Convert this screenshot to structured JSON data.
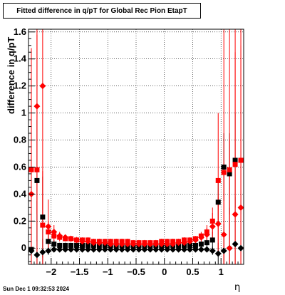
{
  "chart_data": {
    "type": "scatter",
    "title": "Fitted difference in q/pT for Global Rec Pion EtapT",
    "xlabel": "η",
    "ylabel": "difference in q/pT",
    "xlim": [
      -2.4,
      1.4
    ],
    "ylim": [
      -0.12,
      1.62
    ],
    "x_ticks": [
      -2,
      -1.5,
      -1,
      -0.5,
      0,
      0.5,
      1
    ],
    "x_tick_labels": [
      "−2",
      "−1.5",
      "−1",
      "−0.5",
      "0",
      "0.5",
      "1"
    ],
    "y_ticks": [
      0,
      0.2,
      0.4,
      0.6,
      0.8,
      1,
      1.2,
      1.4,
      1.6
    ],
    "y_tick_labels": [
      "0",
      "0.2",
      "0.4",
      "0.6",
      "0.8",
      "1",
      "1.2",
      "1.4",
      "1.6"
    ],
    "grid": true,
    "series": [
      {
        "color": "#000000",
        "marker": "square",
        "x": [
          -2.35,
          -2.25,
          -2.15,
          -2.05,
          -1.95,
          -1.85,
          -1.75,
          -1.65,
          -1.55,
          -1.45,
          -1.35,
          -1.25,
          -1.15,
          -1.05,
          -0.95,
          -0.85,
          -0.75,
          -0.65,
          -0.55,
          -0.45,
          -0.35,
          -0.25,
          -0.15,
          -0.05,
          0.05,
          0.15,
          0.25,
          0.35,
          0.45,
          0.55,
          0.65,
          0.75,
          0.85,
          0.95,
          1.05,
          1.15,
          1.25,
          1.35
        ],
        "y": [
          -0.01,
          0.5,
          0.23,
          0.05,
          0.03,
          0.02,
          0.02,
          0.02,
          0.02,
          0.02,
          0.02,
          0.02,
          0.02,
          0.02,
          0.02,
          0.02,
          0.02,
          0.02,
          0.02,
          0.02,
          0.02,
          0.02,
          0.02,
          0.02,
          0.02,
          0.02,
          0.02,
          0.02,
          0.02,
          0.02,
          0.03,
          0.04,
          0.06,
          0.34,
          0.6,
          0.55,
          0.65,
          0.65
        ],
        "err": [
          0.2,
          0.45,
          0.3,
          0.05,
          0.03,
          0.02,
          0.02,
          0.02,
          0.02,
          0.02,
          0.02,
          0.02,
          0.02,
          0.02,
          0.02,
          0.02,
          0.02,
          0.02,
          0.02,
          0.02,
          0.02,
          0.02,
          0.02,
          0.02,
          0.02,
          0.02,
          0.02,
          0.02,
          0.02,
          0.02,
          0.02,
          0.03,
          0.06,
          0.15,
          0.25,
          0.3,
          0.35,
          0.4
        ]
      },
      {
        "color": "#000000",
        "marker": "diamond",
        "x": [
          -2.35,
          -2.25,
          -2.15,
          -2.05,
          -1.95,
          -1.85,
          -1.75,
          -1.65,
          -1.55,
          -1.45,
          -1.35,
          -1.25,
          -1.15,
          -1.05,
          -0.95,
          -0.85,
          -0.75,
          -0.65,
          -0.55,
          -0.45,
          -0.35,
          -0.25,
          -0.15,
          -0.05,
          0.05,
          0.15,
          0.25,
          0.35,
          0.45,
          0.55,
          0.65,
          0.75,
          0.85,
          0.95,
          1.05,
          1.15,
          1.25,
          1.35
        ],
        "y": [
          -0.02,
          -0.05,
          -0.03,
          -0.02,
          -0.01,
          -0.01,
          -0.01,
          -0.01,
          -0.01,
          -0.01,
          -0.01,
          -0.01,
          -0.01,
          -0.01,
          -0.01,
          -0.01,
          -0.01,
          -0.01,
          -0.01,
          -0.01,
          -0.01,
          -0.01,
          -0.01,
          -0.01,
          -0.01,
          -0.01,
          -0.01,
          -0.01,
          -0.01,
          -0.01,
          -0.01,
          -0.01,
          -0.02,
          -0.04,
          -0.02,
          0.0,
          0.03,
          0.0
        ],
        "err": [
          0.3,
          0.4,
          0.1,
          0.03,
          0.02,
          0.02,
          0.02,
          0.02,
          0.02,
          0.02,
          0.02,
          0.02,
          0.02,
          0.02,
          0.02,
          0.02,
          0.02,
          0.02,
          0.02,
          0.02,
          0.02,
          0.02,
          0.02,
          0.02,
          0.02,
          0.02,
          0.02,
          0.02,
          0.02,
          0.02,
          0.02,
          0.02,
          0.03,
          0.08,
          0.2,
          0.3,
          0.35,
          0.4
        ]
      },
      {
        "color": "#ff0000",
        "marker": "square",
        "x": [
          -2.35,
          -2.25,
          -2.15,
          -2.05,
          -1.95,
          -1.85,
          -1.75,
          -1.65,
          -1.55,
          -1.45,
          -1.35,
          -1.25,
          -1.15,
          -1.05,
          -0.95,
          -0.85,
          -0.75,
          -0.65,
          -0.55,
          -0.45,
          -0.35,
          -0.25,
          -0.15,
          -0.05,
          0.05,
          0.15,
          0.25,
          0.35,
          0.45,
          0.55,
          0.65,
          0.75,
          0.85,
          0.95,
          1.05,
          1.15,
          1.25,
          1.35
        ],
        "y": [
          0.58,
          0.58,
          0.17,
          0.12,
          0.09,
          0.08,
          0.07,
          0.07,
          0.06,
          0.06,
          0.06,
          0.05,
          0.05,
          0.05,
          0.05,
          0.05,
          0.05,
          0.05,
          0.04,
          0.04,
          0.04,
          0.04,
          0.04,
          0.05,
          0.05,
          0.05,
          0.05,
          0.06,
          0.06,
          0.07,
          0.09,
          0.12,
          0.2,
          0.5,
          0.56,
          0.58,
          0.62,
          0.65
        ],
        "err": [
          0.9,
          1.0,
          0.4,
          0.08,
          0.04,
          0.03,
          0.02,
          0.02,
          0.02,
          0.02,
          0.02,
          0.02,
          0.02,
          0.02,
          0.02,
          0.02,
          0.02,
          0.02,
          0.02,
          0.02,
          0.02,
          0.02,
          0.02,
          0.02,
          0.02,
          0.02,
          0.02,
          0.02,
          0.02,
          0.02,
          0.03,
          0.05,
          0.1,
          0.5,
          1.2,
          1.2,
          1.2,
          1.2
        ]
      },
      {
        "color": "#ff0000",
        "marker": "diamond",
        "x": [
          -2.35,
          -2.25,
          -2.15,
          -2.05,
          -1.95,
          -1.85,
          -1.75,
          -1.65,
          -1.55,
          -1.45,
          -1.35,
          -1.25,
          -1.15,
          -1.05,
          -0.95,
          -0.85,
          -0.75,
          -0.65,
          -0.55,
          -0.45,
          -0.35,
          -0.25,
          -0.15,
          -0.05,
          0.05,
          0.15,
          0.25,
          0.35,
          0.45,
          0.55,
          0.65,
          0.75,
          0.85,
          0.95,
          1.05,
          1.15,
          1.25,
          1.35
        ],
        "y": [
          0.4,
          1.05,
          1.2,
          0.16,
          0.12,
          0.09,
          0.08,
          0.07,
          0.06,
          0.05,
          0.05,
          0.04,
          0.04,
          0.04,
          0.03,
          0.03,
          0.03,
          0.03,
          0.03,
          0.03,
          0.03,
          0.03,
          0.03,
          0.03,
          0.03,
          0.03,
          0.04,
          0.04,
          0.05,
          0.06,
          0.08,
          0.1,
          0.16,
          0.18,
          0.1,
          0.0,
          0.25,
          0.3
        ],
        "err": [
          0.8,
          0.8,
          1.0,
          0.2,
          0.05,
          0.03,
          0.02,
          0.02,
          0.02,
          0.02,
          0.02,
          0.02,
          0.02,
          0.02,
          0.02,
          0.02,
          0.02,
          0.02,
          0.02,
          0.02,
          0.02,
          0.02,
          0.02,
          0.02,
          0.02,
          0.02,
          0.02,
          0.02,
          0.02,
          0.02,
          0.03,
          0.05,
          0.1,
          0.2,
          0.5,
          0.8,
          1.2,
          1.2
        ]
      }
    ]
  },
  "footer": {
    "date": "Sun Dec  1 09:32:53 2024"
  }
}
